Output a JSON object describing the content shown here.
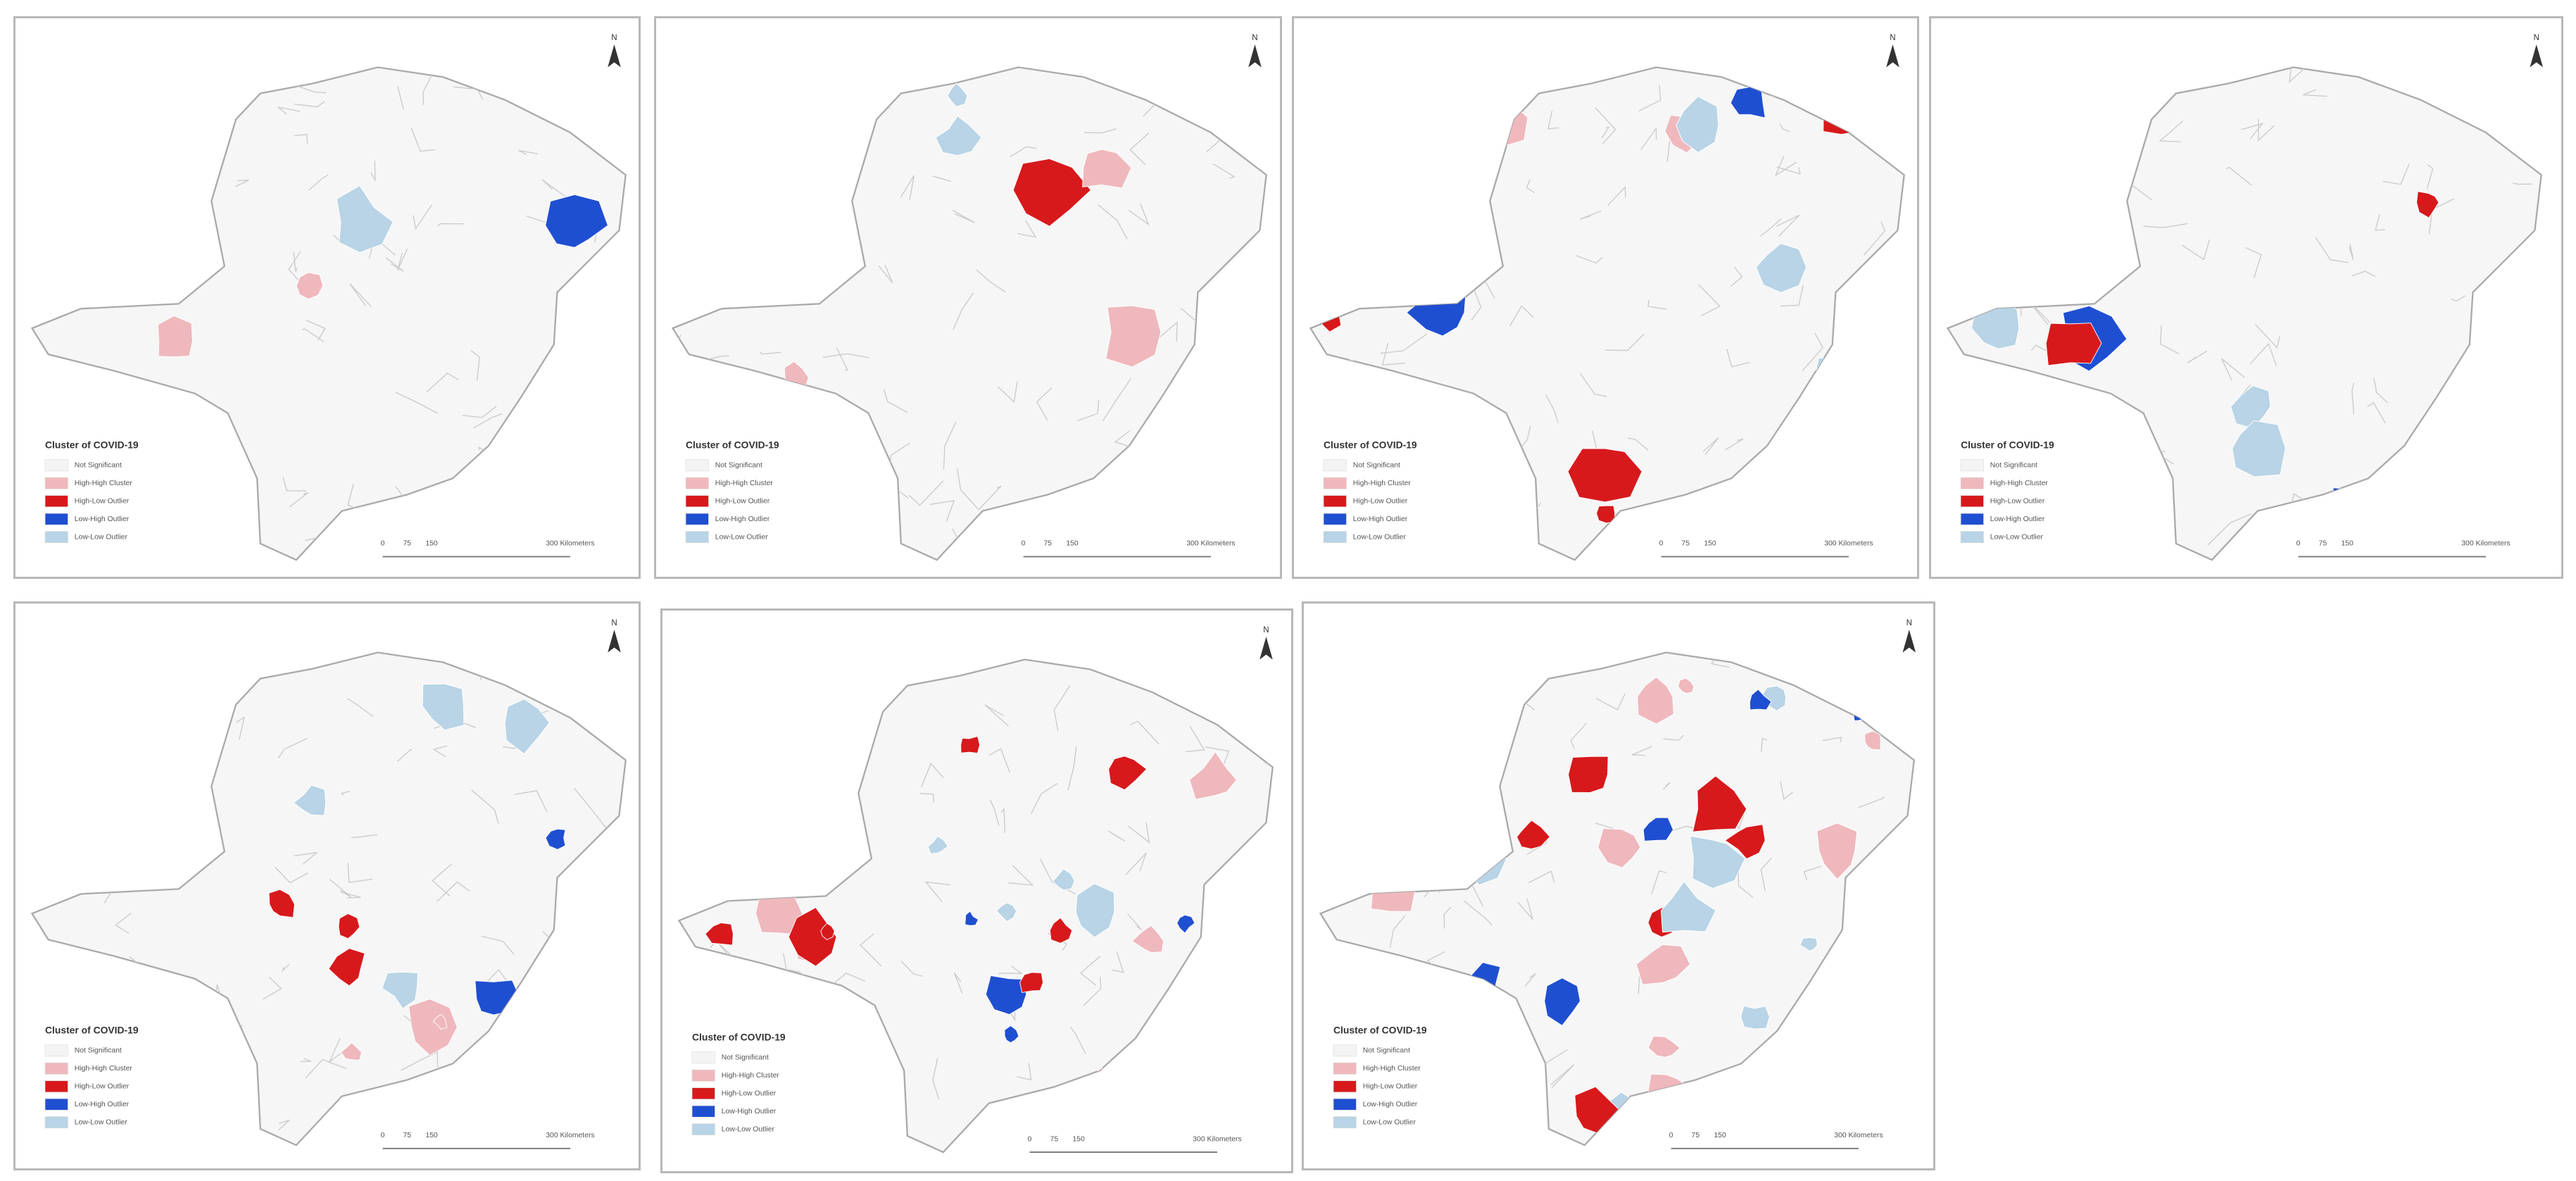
{
  "panels": [
    {
      "legend_title": "Cluster of COVID-19",
      "legend_items": [
        "Not Significant",
        "High-High Cluster",
        "High-Low Outlier",
        "Low-High Outlier",
        "Low-Low Outlier"
      ],
      "scale": [
        "0",
        "75",
        "150",
        "300 Kilometers"
      ],
      "north": "N"
    },
    {
      "legend_title": "Cluster of COVID-19",
      "legend_items": [
        "Not Significant",
        "High-High Cluster",
        "High-Low Outlier",
        "Low-High Outlier",
        "Low-Low Outlier"
      ],
      "scale": [
        "0",
        "75",
        "150",
        "300 Kilometers"
      ],
      "north": "N"
    },
    {
      "legend_title": "Cluster of COVID-19",
      "legend_items": [
        "Not Significant",
        "High-High Cluster",
        "High-Low Outlier",
        "Low-High Outlier",
        "Low-Low Outlier"
      ],
      "scale": [
        "0",
        "75",
        "150",
        "300 Kilometers"
      ],
      "north": "N"
    },
    {
      "legend_title": "Cluster of COVID-19",
      "legend_items": [
        "Not Significant",
        "High-High Cluster",
        "High-Low Outlier",
        "Low-High Outlier",
        "Low-Low Outlier"
      ],
      "scale": [
        "0",
        "75",
        "150",
        "300 Kilometers"
      ],
      "north": "N"
    },
    {
      "legend_title": "Cluster of COVID-19",
      "legend_items": [
        "Not Significant",
        "High-High Cluster",
        "High-Low Outlier",
        "Low-High Outlier",
        "Low-Low Outlier"
      ],
      "scale": [
        "0",
        "75",
        "150",
        "300 Kilometers"
      ],
      "north": "N"
    },
    {
      "legend_title": "Cluster of COVID-19",
      "legend_items": [
        "Not Significant",
        "High-High Cluster",
        "High-Low Outlier",
        "Low-High Outlier",
        "Low-Low Outlier"
      ],
      "scale": [
        "0",
        "75",
        "150",
        "300 Kilometers"
      ],
      "north": "N"
    },
    {
      "legend_title": "Cluster of COVID-19",
      "legend_items": [
        "Not Significant",
        "High-High Cluster",
        "High-Low Outlier",
        "Low-High Outlier",
        "Low-Low Outlier"
      ],
      "scale": [
        "0",
        "75",
        "150",
        "300 Kilometers"
      ],
      "north": "N"
    }
  ]
}
